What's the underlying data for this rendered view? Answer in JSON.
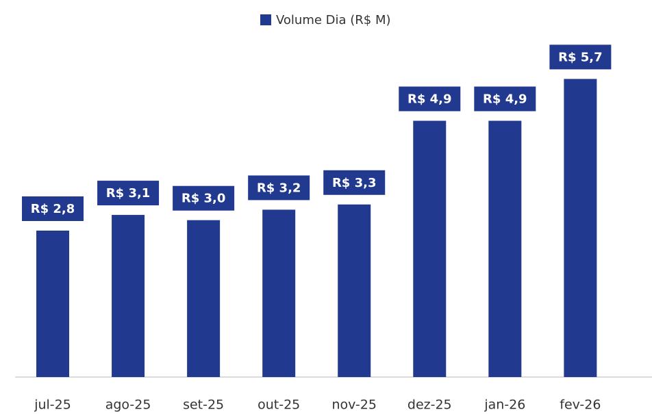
{
  "chart_data": {
    "type": "bar",
    "categories": [
      "jul-25",
      "ago-25",
      "set-25",
      "out-25",
      "nov-25",
      "dez-25",
      "jan-26",
      "fev-26"
    ],
    "series": [
      {
        "name": "Volume Dia (R$ M)",
        "color": "#21398f",
        "values": [
          2.8,
          3.1,
          3.0,
          3.2,
          3.3,
          4.9,
          4.9,
          5.7
        ],
        "value_labels": [
          "R$ 2,8",
          "R$ 3,1",
          "R$ 3,0",
          "R$ 3,2",
          "R$ 3,3",
          "R$ 4,9",
          "R$ 4,9",
          "R$ 5,7"
        ]
      }
    ],
    "ylim": [
      0,
      7
    ],
    "legend": "top"
  }
}
